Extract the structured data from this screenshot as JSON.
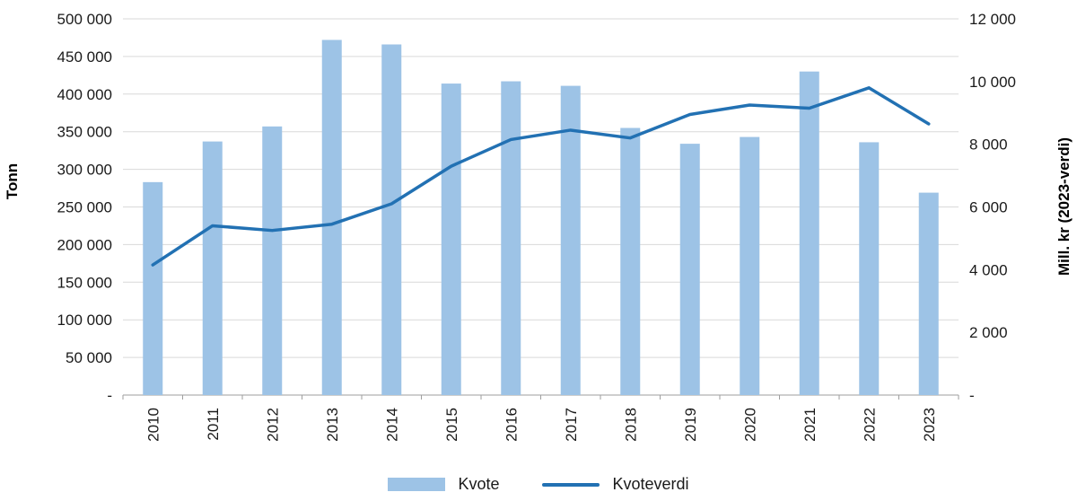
{
  "chart_data": {
    "type": "combo",
    "title": "",
    "categories": [
      "2010",
      "2011",
      "2012",
      "2013",
      "2014",
      "2015",
      "2016",
      "2017",
      "2018",
      "2019",
      "2020",
      "2021",
      "2022",
      "2023"
    ],
    "series": [
      {
        "name": "Kvote",
        "type": "bar",
        "axis": "left",
        "color": "#9dc3e6",
        "values": [
          283000,
          337000,
          357000,
          472000,
          466000,
          414000,
          417000,
          411000,
          355000,
          334000,
          343000,
          430000,
          336000,
          269000
        ]
      },
      {
        "name": "Kvoteverdi",
        "type": "line",
        "axis": "right",
        "color": "#2271b3",
        "values": [
          4150,
          5400,
          5250,
          5450,
          6100,
          7300,
          8150,
          8450,
          8200,
          8950,
          9250,
          9150,
          9800,
          8650
        ]
      }
    ],
    "left_axis": {
      "label": "Tonn",
      "min": 0,
      "max": 500000,
      "step": 50000,
      "tick_labels": [
        "-",
        "50 000",
        "100 000",
        "150 000",
        "200 000",
        "250 000",
        "300 000",
        "350 000",
        "400 000",
        "450 000",
        "500 000"
      ]
    },
    "right_axis": {
      "label": "Mill. kr (2023-verdi)",
      "min": 0,
      "max": 12000,
      "step": 2000,
      "tick_labels": [
        "-",
        "2 000",
        "4 000",
        "6 000",
        "8 000",
        "10 000",
        "12 000"
      ]
    },
    "grid": true,
    "legend_position": "bottom",
    "colors": {
      "gridline": "#d9d9d9",
      "axis_line": "#9e9e9e",
      "tick_text": "#1a1a1a"
    }
  }
}
